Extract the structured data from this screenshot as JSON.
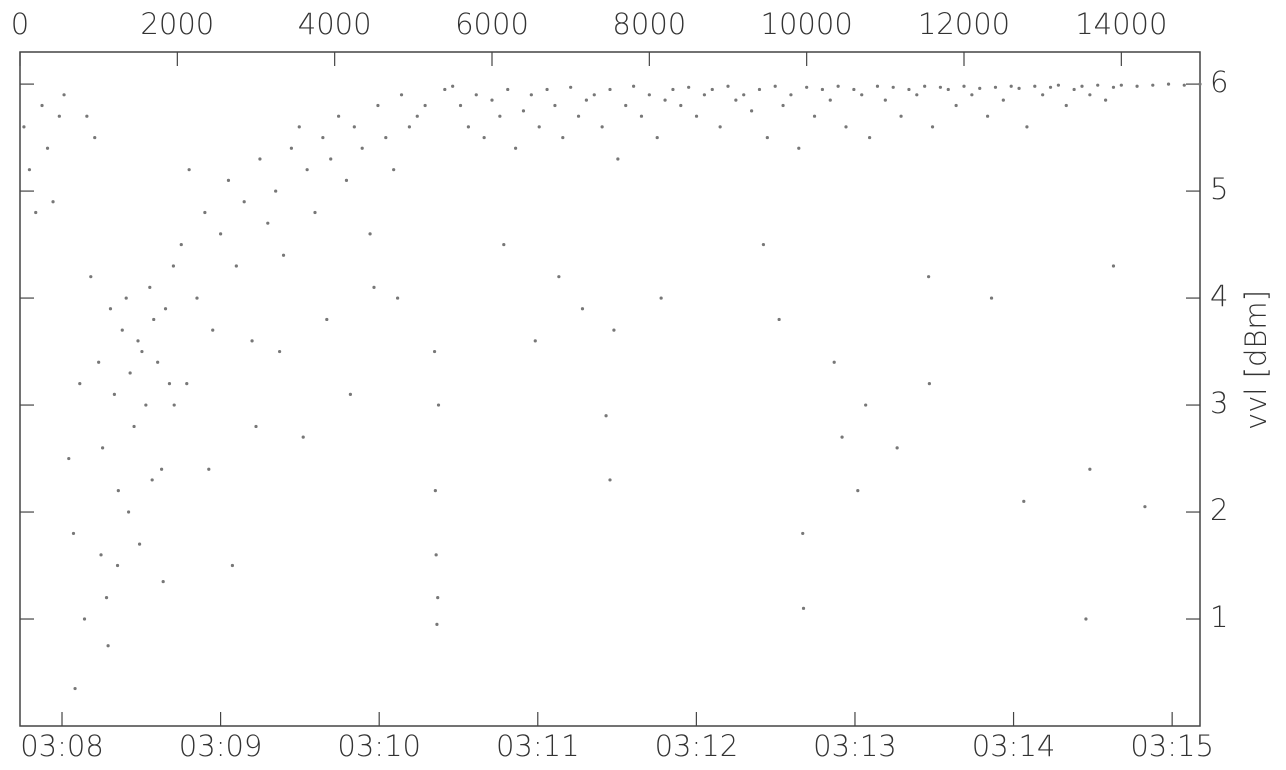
{
  "chart_data": {
    "type": "scatter",
    "x_label_top_unit": null,
    "y_label": "vvl [dBm]",
    "color": "#777777",
    "xlim": [
      0,
      15000
    ],
    "xticks": [
      0,
      2000,
      4000,
      6000,
      8000,
      10000,
      12000,
      14000
    ],
    "x2ticks": [
      {
        "value": 534,
        "label": "03:08"
      },
      {
        "value": 2550,
        "label": "03:09"
      },
      {
        "value": 4566,
        "label": "03:10"
      },
      {
        "value": 6582,
        "label": "03:11"
      },
      {
        "value": 8598,
        "label": "03:12"
      },
      {
        "value": 10614,
        "label": "03:13"
      },
      {
        "value": 12630,
        "label": "03:14"
      },
      {
        "value": 14646,
        "label": "03:15"
      }
    ],
    "ylim": [
      0,
      6.3
    ],
    "yticks": [
      1,
      2,
      3,
      4,
      5,
      6
    ],
    "x": [
      50,
      120,
      200,
      280,
      350,
      420,
      500,
      560,
      620,
      680,
      700,
      760,
      820,
      850,
      900,
      950,
      1000,
      1050,
      1100,
      1150,
      1200,
      1250,
      1300,
      1350,
      1400,
      1450,
      1500,
      1550,
      1600,
      1650,
      1700,
      1750,
      1800,
      1850,
      1900,
      1950,
      1030,
      1120,
      1240,
      1380,
      1520,
      1680,
      1820,
      1960,
      2050,
      2150,
      2250,
      2350,
      2450,
      2550,
      2650,
      2750,
      2850,
      2950,
      3050,
      3150,
      3250,
      3350,
      3450,
      3550,
      3650,
      3750,
      3850,
      3950,
      4050,
      4150,
      4250,
      4350,
      4450,
      4550,
      4650,
      4750,
      4850,
      4950,
      5050,
      5150,
      2120,
      2400,
      2700,
      3000,
      3300,
      3600,
      3900,
      4200,
      4500,
      4800,
      5270,
      5280,
      5290,
      5300,
      5310,
      5320,
      5400,
      5500,
      5600,
      5700,
      5800,
      5900,
      6000,
      6100,
      6200,
      6300,
      6400,
      6500,
      6600,
      6700,
      6800,
      6900,
      7000,
      7100,
      7200,
      7300,
      7400,
      7500,
      7600,
      7700,
      7800,
      7900,
      8000,
      8100,
      8200,
      8300,
      8400,
      8500,
      8600,
      8700,
      8800,
      8900,
      9000,
      9100,
      9200,
      9300,
      9400,
      9500,
      9600,
      9700,
      9800,
      9900,
      10000,
      10100,
      10200,
      10300,
      10400,
      10500,
      10600,
      10700,
      10800,
      10900,
      11000,
      11100,
      11200,
      11300,
      11400,
      11500,
      11600,
      11700,
      11800,
      11900,
      12000,
      12100,
      12200,
      12300,
      12400,
      12500,
      12600,
      12700,
      12800,
      12900,
      13000,
      13100,
      13200,
      13300,
      13400,
      13500,
      13600,
      13700,
      13800,
      13900,
      14000,
      14200,
      14400,
      14600,
      14800,
      15000,
      6150,
      6550,
      6850,
      7150,
      7450,
      7500,
      7550,
      8150,
      9450,
      9650,
      9950,
      9960,
      10350,
      10450,
      10650,
      10750,
      11150,
      11550,
      11560,
      12350,
      12760,
      13550,
      13600,
      13900,
      14300
    ],
    "values": [
      5.6,
      5.2,
      4.8,
      5.8,
      5.4,
      4.9,
      5.7,
      5.9,
      2.5,
      1.8,
      0.35,
      3.2,
      1.0,
      5.7,
      4.2,
      5.5,
      3.4,
      2.6,
      1.2,
      3.9,
      3.1,
      2.2,
      3.7,
      4.0,
      3.3,
      2.8,
      3.6,
      3.5,
      3.0,
      4.1,
      3.8,
      3.4,
      2.4,
      3.9,
      3.2,
      4.3,
      1.6,
      0.75,
      1.5,
      2.0,
      1.7,
      2.3,
      1.35,
      3.0,
      4.5,
      5.2,
      4.0,
      4.8,
      3.7,
      4.6,
      5.1,
      4.3,
      4.9,
      3.6,
      5.3,
      4.7,
      5.0,
      4.4,
      5.4,
      5.6,
      5.2,
      4.8,
      5.5,
      5.3,
      5.7,
      5.1,
      5.6,
      5.4,
      4.6,
      5.8,
      5.5,
      5.2,
      5.9,
      5.6,
      5.7,
      5.8,
      3.2,
      2.4,
      1.5,
      2.8,
      3.5,
      2.7,
      3.8,
      3.1,
      4.1,
      4.0,
      3.5,
      2.2,
      1.6,
      0.95,
      1.2,
      3.0,
      5.95,
      5.98,
      5.8,
      5.6,
      5.9,
      5.5,
      5.85,
      5.7,
      5.95,
      5.4,
      5.75,
      5.9,
      5.6,
      5.95,
      5.8,
      5.5,
      5.97,
      5.7,
      5.85,
      5.9,
      5.6,
      5.95,
      5.3,
      5.8,
      5.98,
      5.7,
      5.9,
      5.5,
      5.85,
      5.95,
      5.8,
      5.97,
      5.7,
      5.9,
      5.95,
      5.6,
      5.98,
      5.85,
      5.9,
      5.75,
      5.95,
      5.5,
      5.98,
      5.8,
      5.9,
      5.4,
      5.97,
      5.7,
      5.95,
      5.85,
      5.98,
      5.6,
      5.95,
      5.9,
      5.5,
      5.98,
      5.85,
      5.97,
      5.7,
      5.95,
      5.9,
      5.98,
      5.6,
      5.97,
      5.95,
      5.8,
      5.98,
      5.9,
      5.96,
      5.7,
      5.97,
      5.85,
      5.98,
      5.96,
      5.6,
      5.98,
      5.9,
      5.97,
      5.99,
      5.8,
      5.95,
      5.98,
      5.9,
      5.99,
      5.85,
      5.97,
      5.99,
      5.98,
      5.99,
      6.0,
      5.99,
      6.0,
      4.5,
      3.6,
      4.2,
      3.9,
      2.9,
      2.3,
      3.7,
      4.0,
      4.5,
      3.8,
      1.8,
      1.1,
      3.4,
      2.7,
      2.2,
      3.0,
      2.6,
      4.2,
      3.2,
      4.0,
      2.1,
      1.0,
      2.4,
      4.3,
      2.05
    ]
  }
}
